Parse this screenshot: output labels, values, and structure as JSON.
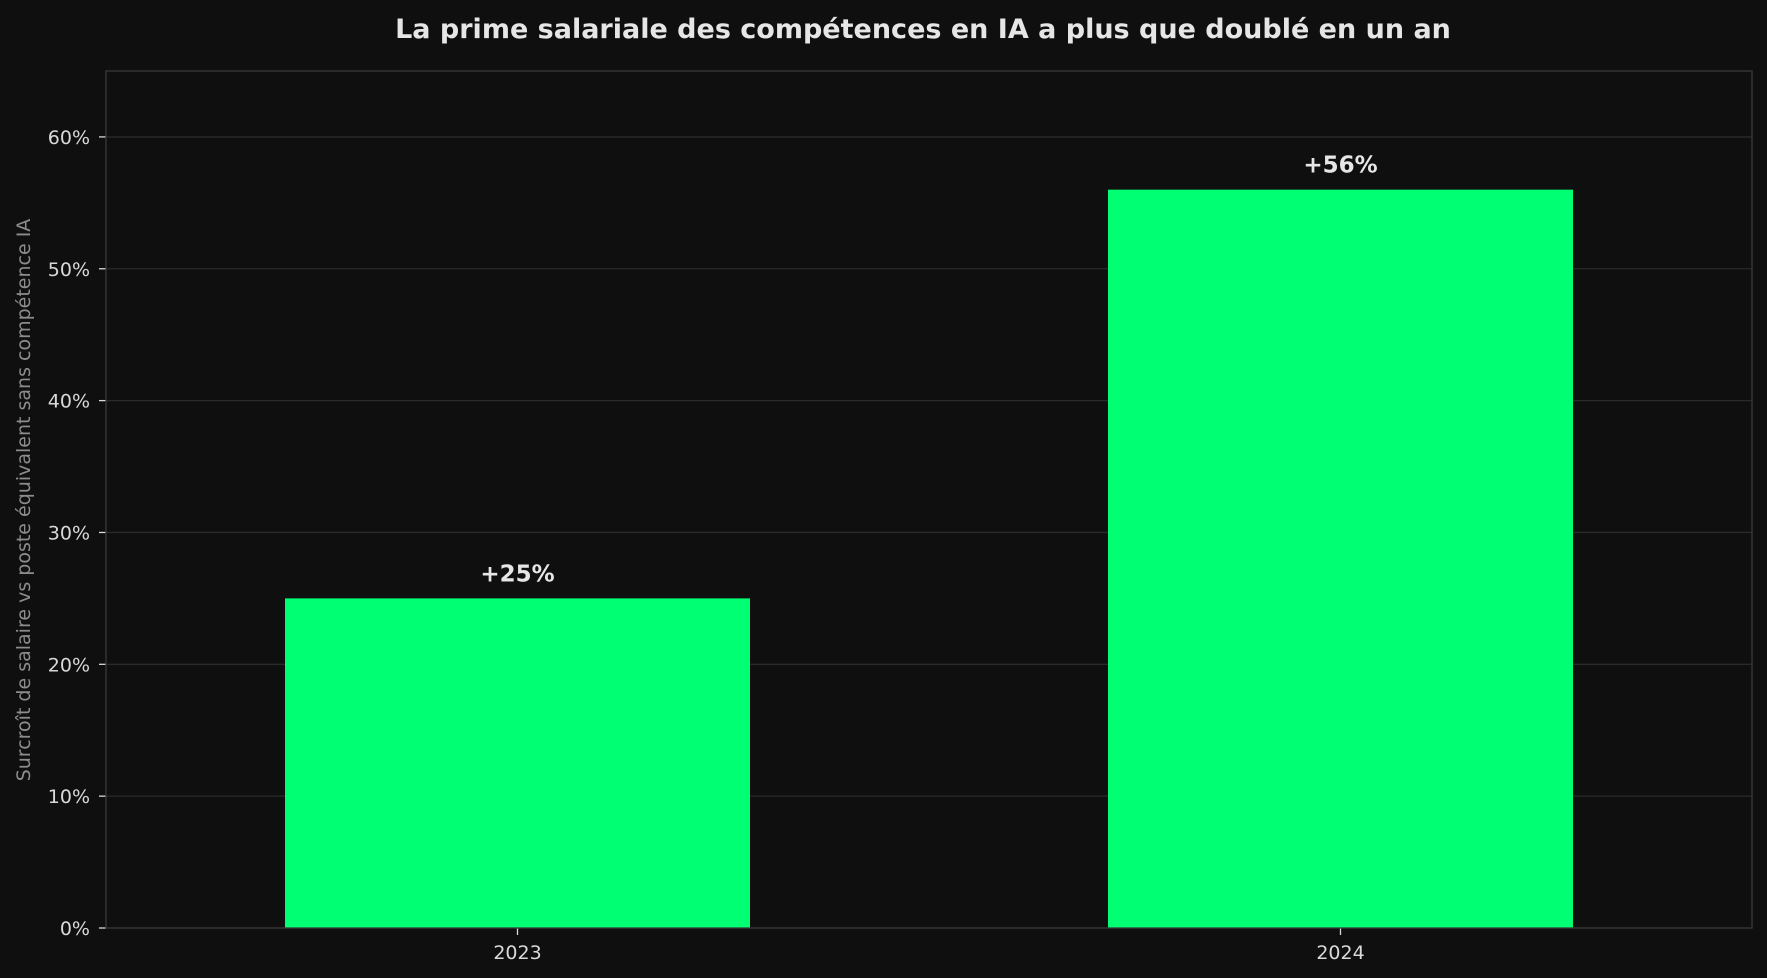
{
  "chart_data": {
    "type": "bar",
    "title": "La prime salariale des compétences en IA a plus que doublé en un an",
    "xlabel": "",
    "ylabel": "Surcroît de salaire vs poste équivalent sans compétence IA",
    "categories": [
      "2023",
      "2024"
    ],
    "values": [
      25,
      56
    ],
    "value_labels": [
      "+25%",
      "+56%"
    ],
    "ylim": [
      0,
      65
    ],
    "yticks": [
      0,
      10,
      20,
      30,
      40,
      50,
      60
    ],
    "ytick_labels": [
      "0%",
      "10%",
      "20%",
      "30%",
      "40%",
      "50%",
      "60%"
    ],
    "grid": true,
    "legend": "none",
    "colors": {
      "background": "#0f0f0f",
      "bar": "#00ff73",
      "grid": "#2a2a2a",
      "axis": "#3a3a3a",
      "title": "#e6e6e6",
      "tick_text": "#d9d9d9",
      "ylabel_text": "#8c8c8c"
    }
  }
}
